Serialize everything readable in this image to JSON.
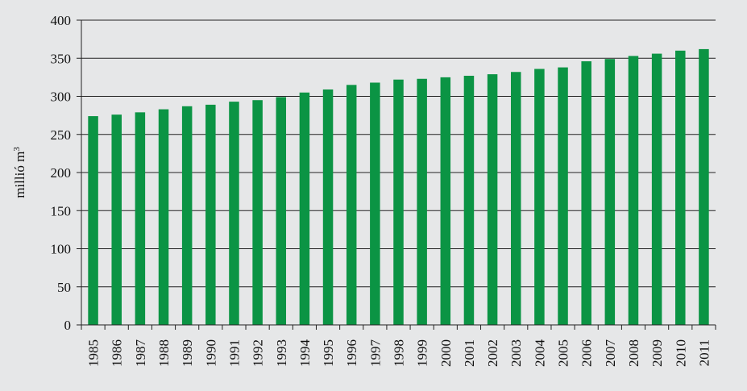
{
  "chart_data": {
    "type": "bar",
    "categories": [
      "1985",
      "1986",
      "1987",
      "1988",
      "1989",
      "1990",
      "1991",
      "1992",
      "1993",
      "1994",
      "1995",
      "1996",
      "1997",
      "1998",
      "1999",
      "2000",
      "2001",
      "2002",
      "2003",
      "2004",
      "2005",
      "2006",
      "2007",
      "2008",
      "2009",
      "2010",
      "2011"
    ],
    "values": [
      274,
      276,
      279,
      283,
      287,
      289,
      293,
      295,
      299,
      305,
      309,
      315,
      318,
      322,
      323,
      325,
      327,
      329,
      332,
      336,
      338,
      346,
      349,
      353,
      356,
      360,
      362
    ],
    "ylabel": "millió m",
    "ylabel_superscript": "3",
    "ylim": [
      0,
      400
    ],
    "yticks": [
      "0",
      "50",
      "100",
      "150",
      "200",
      "250",
      "300",
      "350",
      "400"
    ],
    "grid": true,
    "legend": "none",
    "colors": {
      "bar": "#0b9444",
      "background": "#e6e7e8",
      "grid": "#222222",
      "axis": "#222222"
    }
  }
}
